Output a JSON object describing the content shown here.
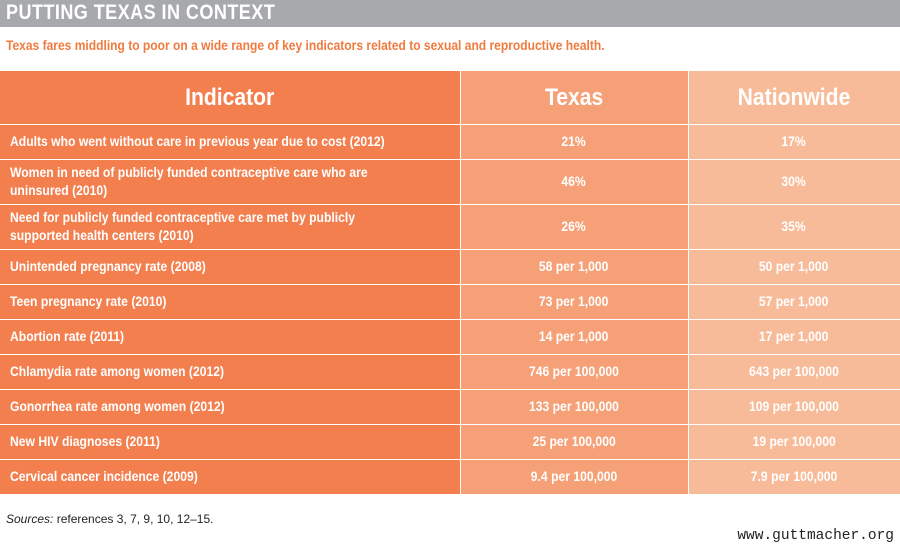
{
  "header": {
    "title": "PUTTING TEXAS IN CONTEXT"
  },
  "subtitle": "Texas fares middling to poor on a wide range of key indicators related to sexual and reproductive health.",
  "table": {
    "columns": [
      "Indicator",
      "Texas",
      "Nationwide"
    ],
    "rows": [
      {
        "indicator": "Adults who went without care in previous year due to cost (2012)",
        "texas": "21%",
        "nationwide": "17%"
      },
      {
        "indicator": "Women in need of publicly funded contraceptive care who are uninsured (2010)",
        "texas": "46%",
        "nationwide": "30%"
      },
      {
        "indicator": "Need for publicly funded contraceptive care met by publicly supported health centers (2010)",
        "texas": "26%",
        "nationwide": "35%"
      },
      {
        "indicator": "Unintended pregnancy rate (2008)",
        "texas": "58 per 1,000",
        "nationwide": "50 per 1,000"
      },
      {
        "indicator": "Teen pregnancy rate (2010)",
        "texas": "73 per 1,000",
        "nationwide": "57 per 1,000"
      },
      {
        "indicator": "Abortion rate (2011)",
        "texas": "14 per 1,000",
        "nationwide": "17 per 1,000"
      },
      {
        "indicator": "Chlamydia rate among women (2012)",
        "texas": "746 per 100,000",
        "nationwide": "643 per 100,000"
      },
      {
        "indicator": "Gonorrhea rate among women (2012)",
        "texas": "133 per 100,000",
        "nationwide": "109 per 100,000"
      },
      {
        "indicator": "New HIV diagnoses (2011)",
        "texas": "25 per 100,000",
        "nationwide": "19 per 100,000"
      },
      {
        "indicator": "Cervical cancer incidence (2009)",
        "texas": "9.4 per 100,000",
        "nationwide": "7.9 per 100,000"
      }
    ]
  },
  "sources": {
    "label": "Sources:",
    "text": " references 3, 7, 9, 10, 12–15."
  },
  "footer": {
    "url": "www.guttmacher.org"
  },
  "colors": {
    "header_bar": "#a7a9ac",
    "subtitle": "#f07b3f",
    "indicator_column": "#f37f4f",
    "texas_column": "#f5a077",
    "nationwide_column": "#f8bb99"
  }
}
